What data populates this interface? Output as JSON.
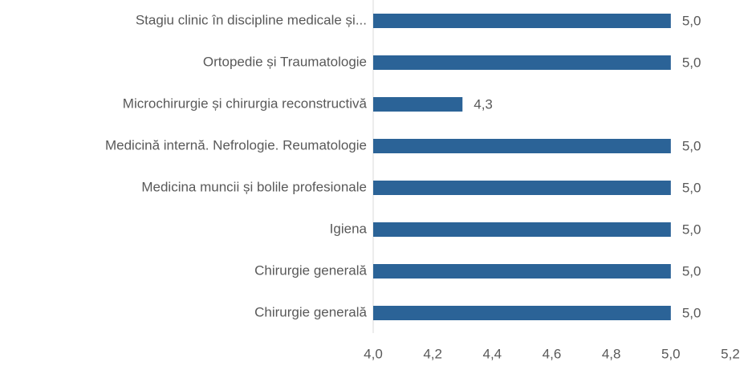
{
  "chart_data": {
    "type": "bar",
    "orientation": "horizontal",
    "categories": [
      "Stagiu clinic în discipline medicale și...",
      "Ortopedie și Traumatologie",
      "Microchirurgie și chirurgia reconstructivă",
      "Medicină internă. Nefrologie. Reumatologie",
      "Medicina muncii și bolile profesionale",
      "Igiena",
      "Chirurgie generală",
      "Chirurgie generală"
    ],
    "values": [
      5.0,
      5.0,
      4.3,
      5.0,
      5.0,
      5.0,
      5.0,
      5.0
    ],
    "value_labels": [
      "5,0",
      "5,0",
      "4,3",
      "5,0",
      "5,0",
      "5,0",
      "5,0",
      "5,0"
    ],
    "color": "#2b6397",
    "xlim": [
      4.0,
      5.2
    ],
    "xticks": [
      {
        "value": 4.0,
        "label": "4,0"
      },
      {
        "value": 4.2,
        "label": "4,2"
      },
      {
        "value": 4.4,
        "label": "4,4"
      },
      {
        "value": 4.6,
        "label": "4,6"
      },
      {
        "value": 4.8,
        "label": "4,8"
      },
      {
        "value": 5.0,
        "label": "5,0"
      },
      {
        "value": 5.2,
        "label": "5,2"
      }
    ],
    "grid": false
  }
}
